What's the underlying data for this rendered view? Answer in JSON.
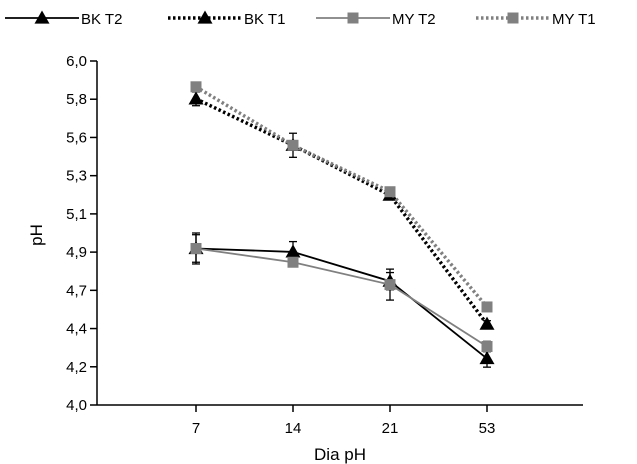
{
  "chart_data": {
    "type": "line",
    "xlabel": "Dia pH",
    "ylabel": "pH",
    "categories": [
      "7",
      "14",
      "21",
      "53"
    ],
    "y_ticks": [
      "4,0",
      "4,2",
      "4,4",
      "4,7",
      "4,9",
      "5,1",
      "5,3",
      "5,6",
      "5,8",
      "6,0"
    ],
    "ylim": [
      4.0,
      6.0
    ],
    "grid": false,
    "legend_position": "top",
    "series": [
      {
        "name": "BK T2",
        "marker": "triangle",
        "line": "solid",
        "color": "#000000",
        "values": [
          4.91,
          4.89,
          4.72,
          4.27
        ],
        "errors": [
          0.09,
          0.06,
          0.05,
          0.05
        ]
      },
      {
        "name": "BK T1",
        "marker": "triangle",
        "line": "dotted",
        "color": "#000000",
        "values": [
          5.78,
          5.51,
          5.22,
          4.47
        ],
        "errors": [
          0.04,
          0.07,
          0.02,
          0.02
        ]
      },
      {
        "name": "MY T2",
        "marker": "square",
        "line": "solid",
        "color": "#808080",
        "values": [
          4.91,
          4.83,
          4.7,
          4.34
        ],
        "errors": [
          0.08,
          0.02,
          0.09,
          0.03
        ]
      },
      {
        "name": "MY T1",
        "marker": "square",
        "line": "dotted",
        "color": "#808080",
        "values": [
          5.85,
          5.51,
          5.24,
          4.57
        ],
        "errors": [
          0.02,
          0.02,
          0.02,
          0.02
        ]
      }
    ]
  }
}
